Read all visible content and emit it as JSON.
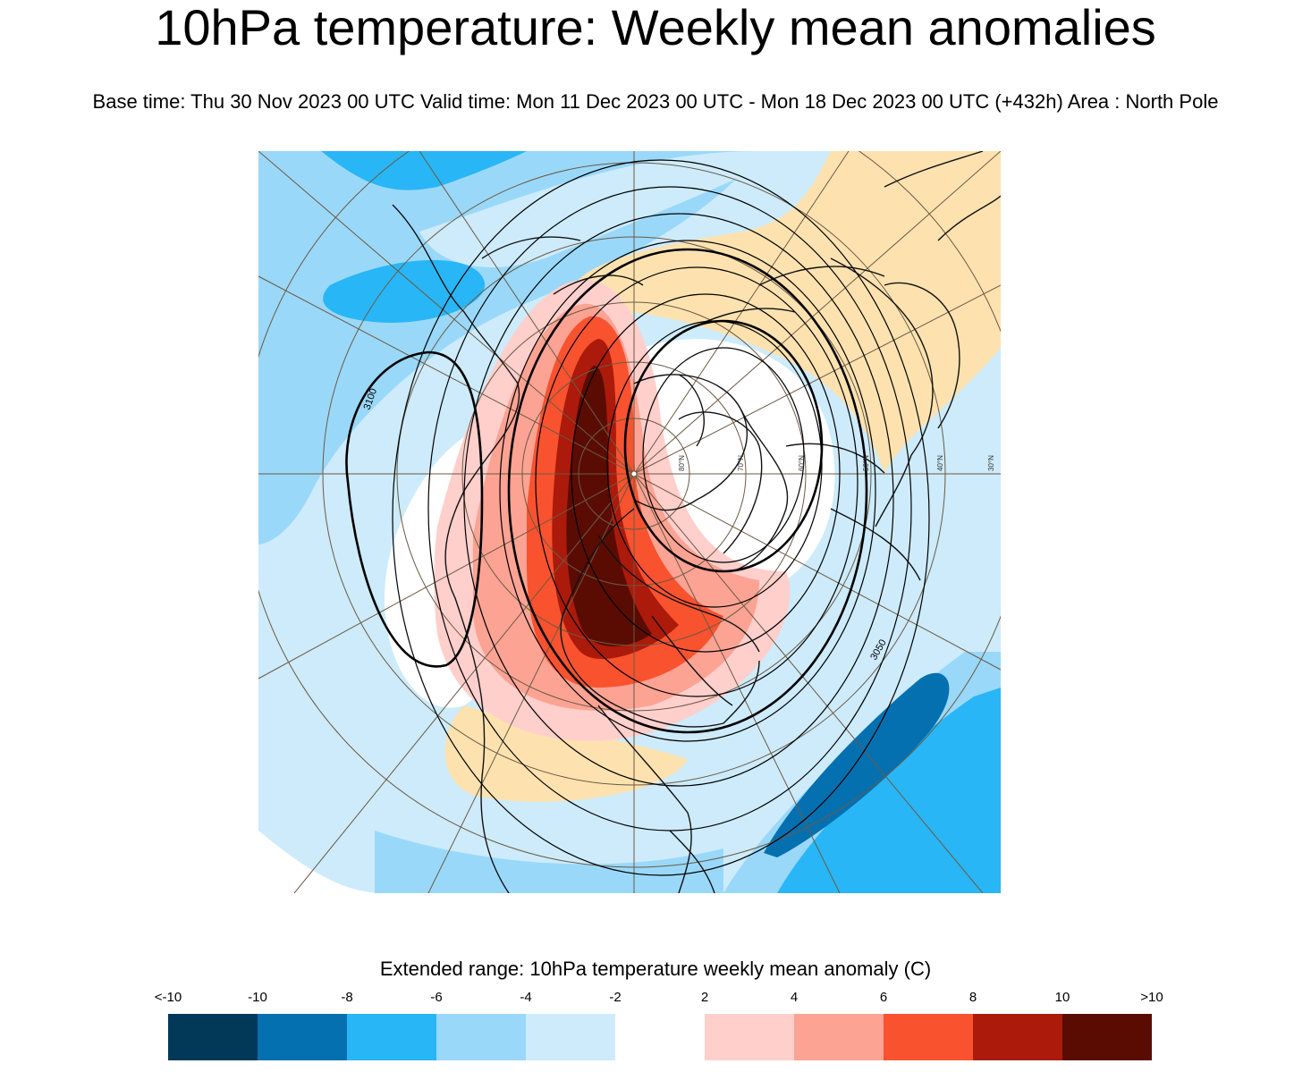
{
  "title": "10hPa temperature: Weekly mean anomalies",
  "subtitle": "Base time: Thu 30 Nov 2023 00 UTC Valid time: Mon 11 Dec 2023 00 UTC - Mon 18 Dec 2023 00 UTC (+432h) Area : North Pole",
  "map": {
    "projection": "north polar stereographic",
    "area": "North Pole",
    "contour_labels": [
      "3100",
      "3050"
    ],
    "latitude_labels": [
      "80°N",
      "70°N",
      "60°N",
      "50°N",
      "40°N",
      "30°N"
    ]
  },
  "legend": {
    "title": "Extended range: 10hPa temperature weekly mean anomaly (C)",
    "tick_labels": [
      "<-10",
      "-10",
      "-8",
      "-6",
      "-4",
      "-2",
      "2",
      "4",
      "6",
      "8",
      "10",
      ">10"
    ],
    "colors": [
      "#023858",
      "#0570b0",
      "#29b6f6",
      "#9ad8fa",
      "#cdebfb",
      "#ffffff",
      "#ffcfcc",
      "#fca394",
      "#f9522f",
      "#ab1a0a",
      "#5a0c02"
    ]
  }
}
